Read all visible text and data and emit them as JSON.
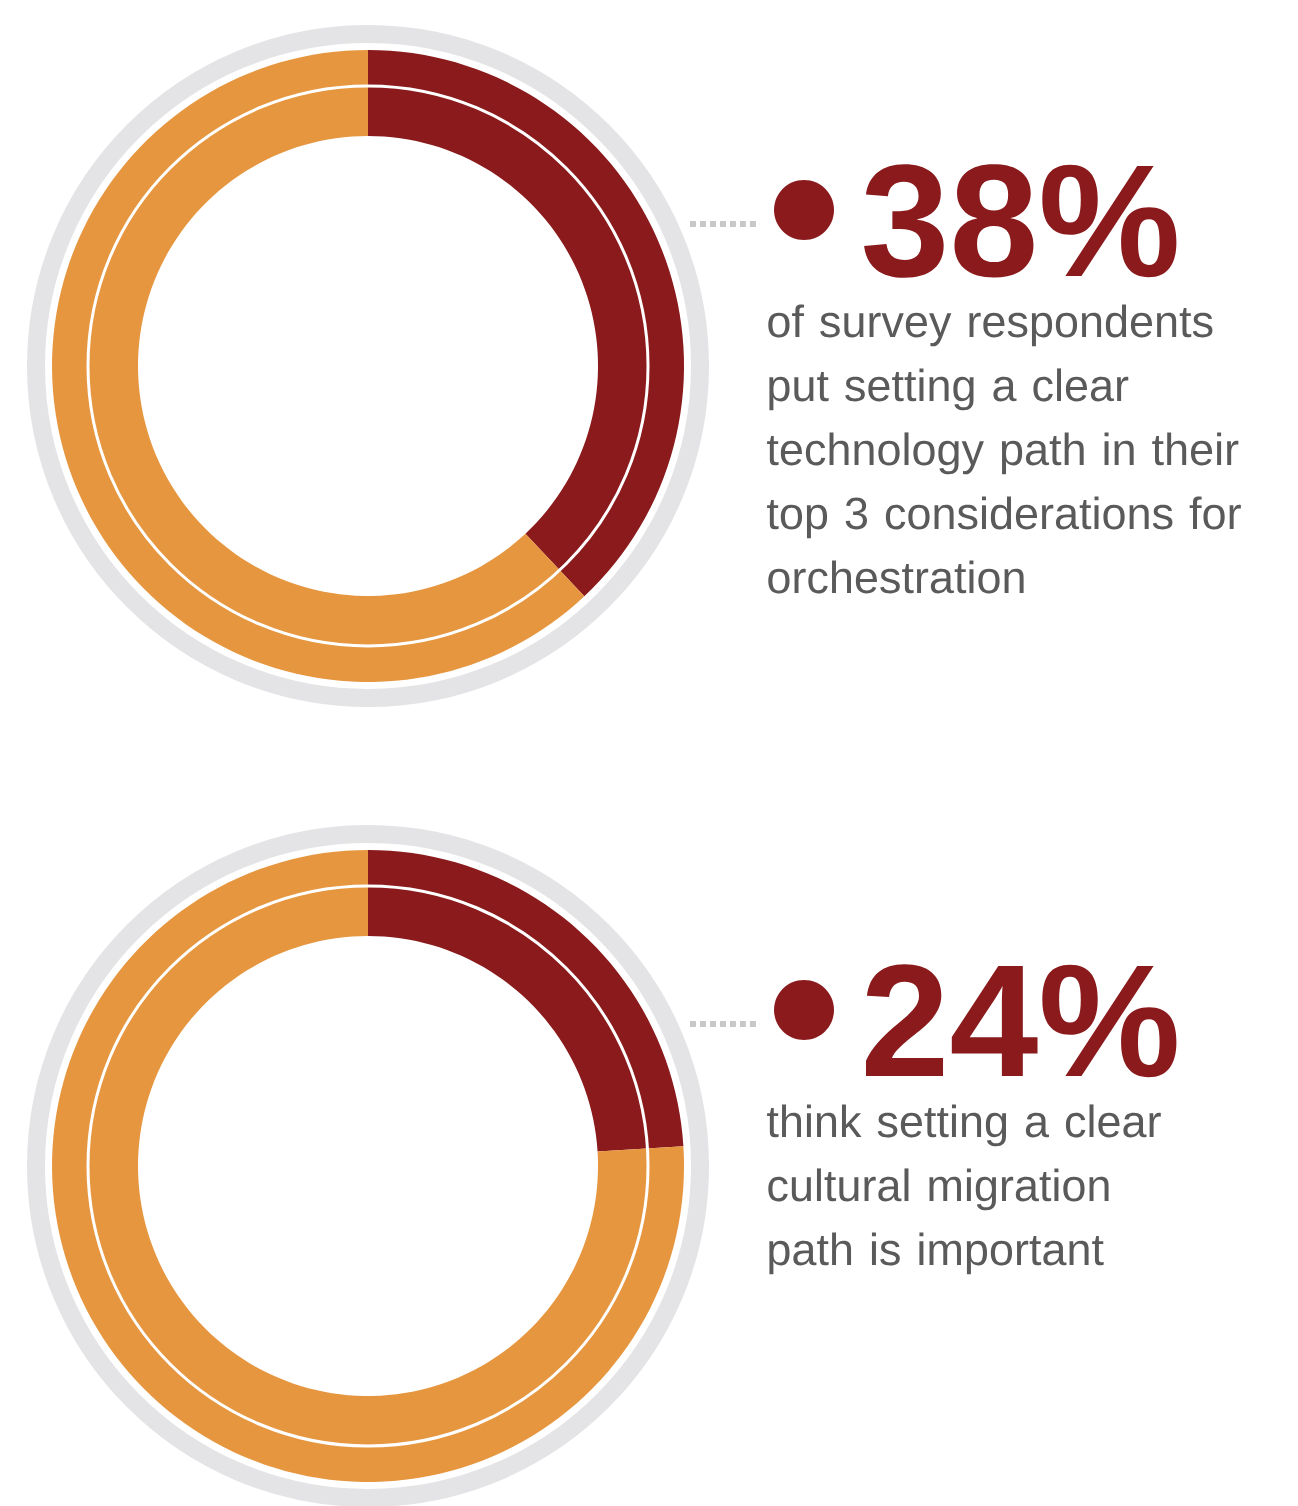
{
  "chart_data": [
    {
      "type": "donut",
      "categories": [
        null,
        null
      ],
      "values": [
        38,
        62
      ],
      "colors": [
        "#8b1a1c",
        "#e6963f"
      ],
      "value_labels": [
        "38%",
        null
      ],
      "annotations": [
        "of survey respondents put setting a clear technology path in their top 3 considerations for orchestration"
      ]
    },
    {
      "type": "donut",
      "categories": [
        null,
        null
      ],
      "values": [
        24,
        76
      ],
      "colors": [
        "#8b1a1c",
        "#e6963f"
      ],
      "value_labels": [
        "24%",
        null
      ],
      "annotations": [
        "think setting a clear cultural migration path is important"
      ]
    }
  ]
}
